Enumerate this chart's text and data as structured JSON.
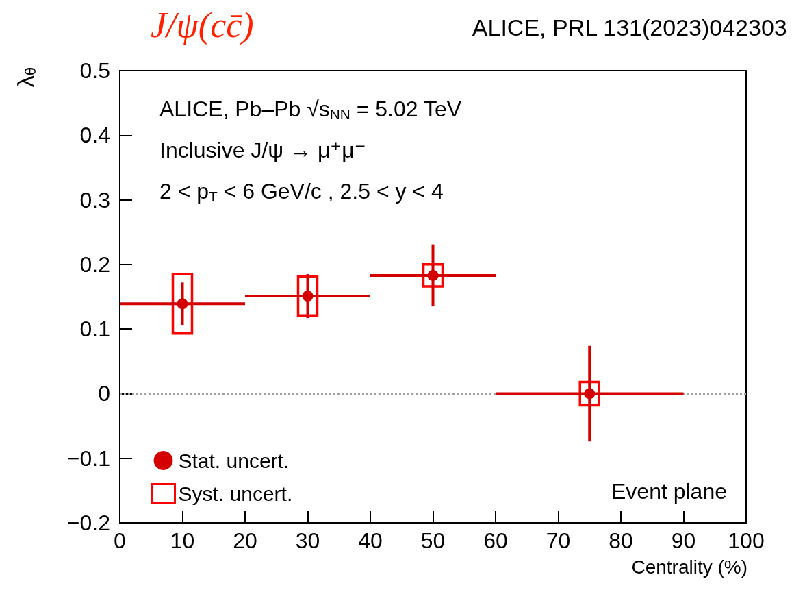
{
  "chart_data": {
    "type": "scatter",
    "title": "J/ψ(cc̄)",
    "subtitle": "ALICE, PRL 131(2023)042303",
    "xlabel": "Centrality (%)",
    "ylabel": "λ$_{θ}$",
    "x": [
      10,
      30,
      50,
      75
    ],
    "series": [
      {
        "name": "Stat. uncert.",
        "color": "#d40000",
        "values": [
          0.139,
          0.151,
          0.183,
          0.0
        ],
        "errors": [
          0.033,
          0.034,
          0.048,
          0.074
        ],
        "xerrors": [
          10,
          10,
          10,
          15
        ],
        "marker": "circle"
      },
      {
        "name": "Syst. uncert.",
        "type": "bar",
        "color": "#ff0000",
        "base": [
          0.093,
          0.121,
          0.166,
          -0.018
        ],
        "values": [
          0.092,
          0.06,
          0.034,
          0.036
        ]
      }
    ],
    "xlim": [
      0,
      100
    ],
    "xticks": [
      0,
      10,
      20,
      30,
      40,
      50,
      60,
      70,
      80,
      90,
      100
    ],
    "ylim": [
      -0.2,
      0.5
    ],
    "yticks": [
      {
        "value": -0.2,
        "label": "−0.2"
      },
      {
        "value": -0.1,
        "label": "−0.1"
      },
      0,
      0.1,
      0.2,
      0.3,
      0.4,
      0.5
    ],
    "ref_lines": [
      {
        "axis": "y",
        "value": 0,
        "color": "#a0a0a0",
        "line_style": "dotted"
      }
    ],
    "annotations": [
      "ALICE, Pb–Pb √s$_{NN}$ = 5.02 TeV",
      "Inclusive J/ψ → μ⁺μ⁻",
      "2 < p$_{T}$ < 6 GeV/c , 2.5 < y < 4",
      "Event plane"
    ],
    "legend": "bottom left",
    "grid": false
  }
}
